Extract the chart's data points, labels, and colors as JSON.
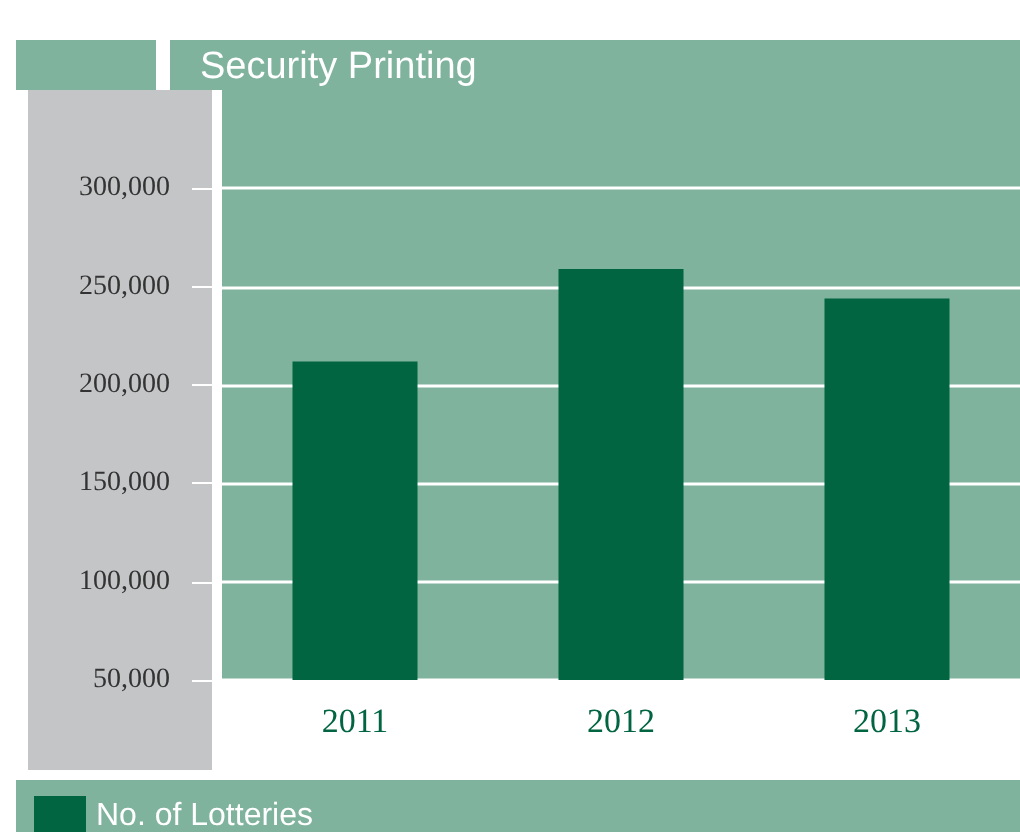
{
  "chart_data": {
    "type": "bar",
    "title": "Security Printing",
    "categories": [
      "2011",
      "2012",
      "2013"
    ],
    "series": [
      {
        "name": "No. of Lotteries",
        "color": "#006540",
        "values": [
          212000,
          259000,
          244000
        ]
      }
    ],
    "ylim": [
      50000,
      350000
    ],
    "yticks": [
      {
        "value": 50000,
        "label": "50,000"
      },
      {
        "value": 100000,
        "label": "100,000"
      },
      {
        "value": 150000,
        "label": "150,000"
      },
      {
        "value": 200000,
        "label": "200,000"
      },
      {
        "value": 250000,
        "label": "250,000"
      },
      {
        "value": 300000,
        "label": "300,000"
      }
    ],
    "grid": true,
    "legend": "bottom left"
  }
}
